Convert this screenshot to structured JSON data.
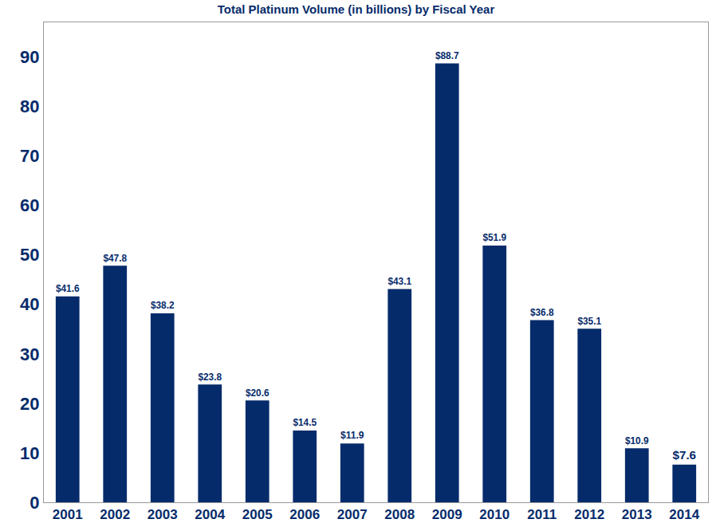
{
  "chart_data": {
    "type": "bar",
    "title": "Total Platinum Volume (in billions) by Fiscal Year",
    "categories": [
      "2001",
      "2002",
      "2003",
      "2004",
      "2005",
      "2006",
      "2007",
      "2008",
      "2009",
      "2010",
      "2011",
      "2012",
      "2013",
      "2014"
    ],
    "values": [
      41.6,
      47.8,
      38.2,
      23.8,
      20.6,
      14.5,
      11.9,
      43.1,
      88.7,
      51.9,
      36.8,
      35.1,
      10.9,
      7.6
    ],
    "value_labels": [
      "$41.6",
      "$47.8",
      "$38.2",
      "$23.8",
      "$20.6",
      "$14.5",
      "$11.9",
      "$43.1",
      "$88.7",
      "$51.9",
      "$36.8",
      "$35.1",
      "$10.9",
      "$7.6"
    ],
    "color": "#062b6b",
    "ylim": [
      0,
      97
    ],
    "yticks": [
      0,
      10,
      20,
      30,
      40,
      50,
      60,
      70,
      80,
      90
    ],
    "grid": false,
    "data_labels": true
  }
}
